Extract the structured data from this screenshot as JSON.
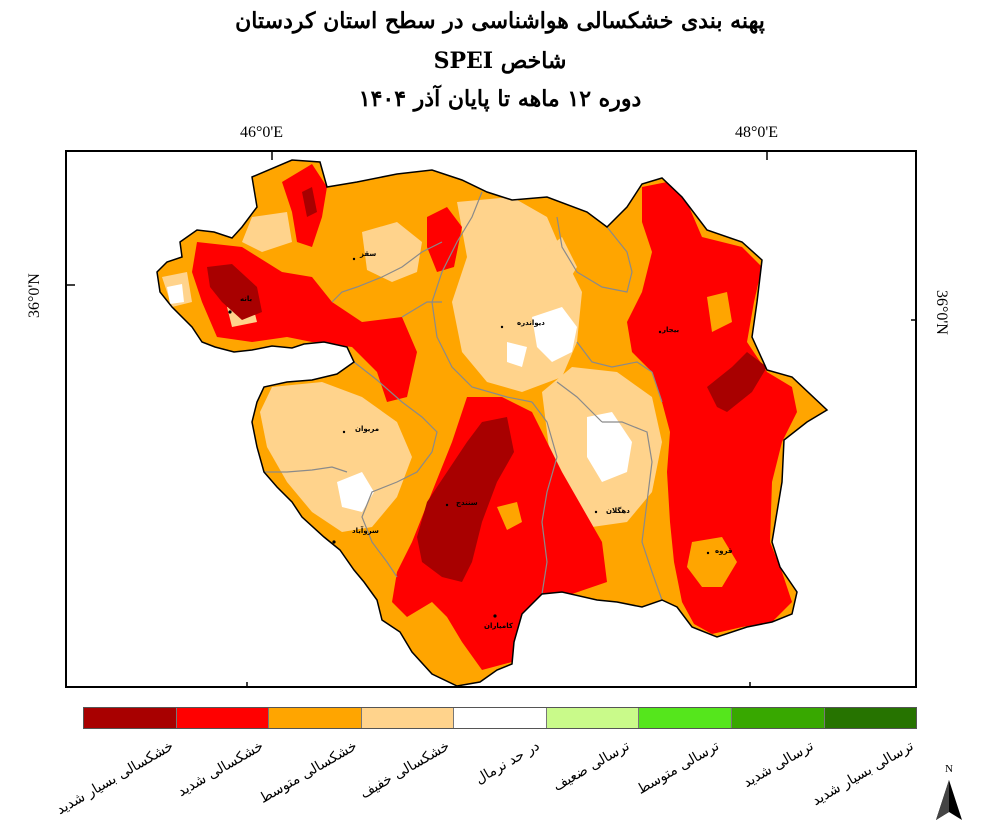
{
  "title": {
    "line1": "پهنه بندی خشکسالی هواشناسی در سطح استان کردستان",
    "line2": "شاخص SPEI",
    "line3": "دوره  ۱۲ ماهه تا پایان  آذر  ۱۴۰۴"
  },
  "axes": {
    "top_left": "46°0'E",
    "top_right": "48°0'E",
    "left": "36°0'N",
    "right": "36°0'N"
  },
  "cities": [
    {
      "name": "سقز"
    },
    {
      "name": "بانه"
    },
    {
      "name": "دیواندره"
    },
    {
      "name": "بیجار"
    },
    {
      "name": "مریوان"
    },
    {
      "name": "سنندج"
    },
    {
      "name": "دهگلان"
    },
    {
      "name": "سروآباد"
    },
    {
      "name": "قروه"
    },
    {
      "name": "کامیاران"
    }
  ],
  "legend": [
    {
      "label": "خشکسالی بسیار شدید",
      "color": "#a80000"
    },
    {
      "label": "خشکسالی شدید",
      "color": "#ff0000"
    },
    {
      "label": "خشکسالی متوسط",
      "color": "#ffa500"
    },
    {
      "label": "خشکسالی خفیف",
      "color": "#ffd38c"
    },
    {
      "label": "در حد نرمال",
      "color": "#ffffff"
    },
    {
      "label": "ترسالی ضعیف",
      "color": "#c9fa8a"
    },
    {
      "label": "ترسالی متوسط",
      "color": "#55e61c"
    },
    {
      "label": "ترسالی شدید",
      "color": "#38a800"
    },
    {
      "label": "ترسالی بسیار شدید",
      "color": "#267300"
    }
  ],
  "north_label": "N"
}
